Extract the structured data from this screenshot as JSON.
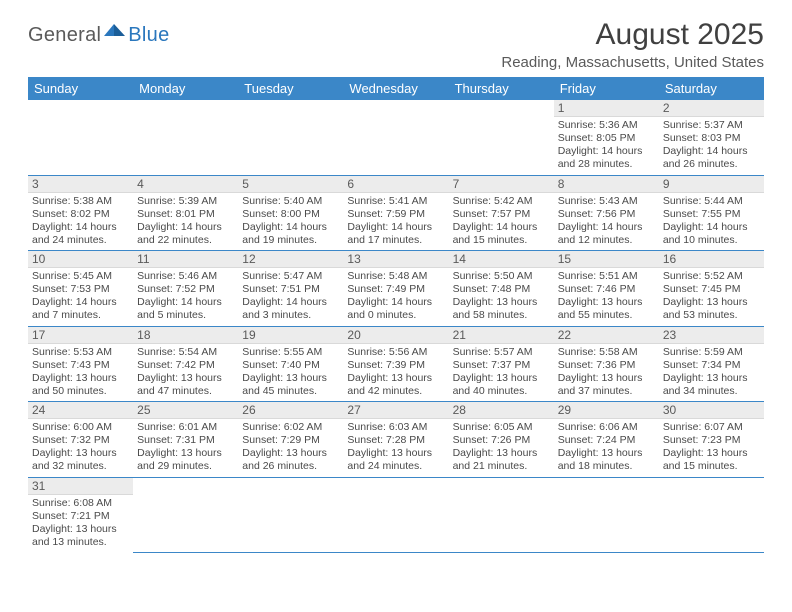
{
  "brand": {
    "part1": "General",
    "part2": "Blue",
    "mark_color": "#2a77bd"
  },
  "title": "August 2025",
  "location": "Reading, Massachusetts, United States",
  "header_bg": "#3b87c8",
  "weekdays": [
    "Sunday",
    "Monday",
    "Tuesday",
    "Wednesday",
    "Thursday",
    "Friday",
    "Saturday"
  ],
  "weeks": [
    [
      null,
      null,
      null,
      null,
      null,
      {
        "n": "1",
        "sr": "5:36 AM",
        "ss": "8:05 PM",
        "dl": "14 hours and 28 minutes."
      },
      {
        "n": "2",
        "sr": "5:37 AM",
        "ss": "8:03 PM",
        "dl": "14 hours and 26 minutes."
      }
    ],
    [
      {
        "n": "3",
        "sr": "5:38 AM",
        "ss": "8:02 PM",
        "dl": "14 hours and 24 minutes."
      },
      {
        "n": "4",
        "sr": "5:39 AM",
        "ss": "8:01 PM",
        "dl": "14 hours and 22 minutes."
      },
      {
        "n": "5",
        "sr": "5:40 AM",
        "ss": "8:00 PM",
        "dl": "14 hours and 19 minutes."
      },
      {
        "n": "6",
        "sr": "5:41 AM",
        "ss": "7:59 PM",
        "dl": "14 hours and 17 minutes."
      },
      {
        "n": "7",
        "sr": "5:42 AM",
        "ss": "7:57 PM",
        "dl": "14 hours and 15 minutes."
      },
      {
        "n": "8",
        "sr": "5:43 AM",
        "ss": "7:56 PM",
        "dl": "14 hours and 12 minutes."
      },
      {
        "n": "9",
        "sr": "5:44 AM",
        "ss": "7:55 PM",
        "dl": "14 hours and 10 minutes."
      }
    ],
    [
      {
        "n": "10",
        "sr": "5:45 AM",
        "ss": "7:53 PM",
        "dl": "14 hours and 7 minutes."
      },
      {
        "n": "11",
        "sr": "5:46 AM",
        "ss": "7:52 PM",
        "dl": "14 hours and 5 minutes."
      },
      {
        "n": "12",
        "sr": "5:47 AM",
        "ss": "7:51 PM",
        "dl": "14 hours and 3 minutes."
      },
      {
        "n": "13",
        "sr": "5:48 AM",
        "ss": "7:49 PM",
        "dl": "14 hours and 0 minutes."
      },
      {
        "n": "14",
        "sr": "5:50 AM",
        "ss": "7:48 PM",
        "dl": "13 hours and 58 minutes."
      },
      {
        "n": "15",
        "sr": "5:51 AM",
        "ss": "7:46 PM",
        "dl": "13 hours and 55 minutes."
      },
      {
        "n": "16",
        "sr": "5:52 AM",
        "ss": "7:45 PM",
        "dl": "13 hours and 53 minutes."
      }
    ],
    [
      {
        "n": "17",
        "sr": "5:53 AM",
        "ss": "7:43 PM",
        "dl": "13 hours and 50 minutes."
      },
      {
        "n": "18",
        "sr": "5:54 AM",
        "ss": "7:42 PM",
        "dl": "13 hours and 47 minutes."
      },
      {
        "n": "19",
        "sr": "5:55 AM",
        "ss": "7:40 PM",
        "dl": "13 hours and 45 minutes."
      },
      {
        "n": "20",
        "sr": "5:56 AM",
        "ss": "7:39 PM",
        "dl": "13 hours and 42 minutes."
      },
      {
        "n": "21",
        "sr": "5:57 AM",
        "ss": "7:37 PM",
        "dl": "13 hours and 40 minutes."
      },
      {
        "n": "22",
        "sr": "5:58 AM",
        "ss": "7:36 PM",
        "dl": "13 hours and 37 minutes."
      },
      {
        "n": "23",
        "sr": "5:59 AM",
        "ss": "7:34 PM",
        "dl": "13 hours and 34 minutes."
      }
    ],
    [
      {
        "n": "24",
        "sr": "6:00 AM",
        "ss": "7:32 PM",
        "dl": "13 hours and 32 minutes."
      },
      {
        "n": "25",
        "sr": "6:01 AM",
        "ss": "7:31 PM",
        "dl": "13 hours and 29 minutes."
      },
      {
        "n": "26",
        "sr": "6:02 AM",
        "ss": "7:29 PM",
        "dl": "13 hours and 26 minutes."
      },
      {
        "n": "27",
        "sr": "6:03 AM",
        "ss": "7:28 PM",
        "dl": "13 hours and 24 minutes."
      },
      {
        "n": "28",
        "sr": "6:05 AM",
        "ss": "7:26 PM",
        "dl": "13 hours and 21 minutes."
      },
      {
        "n": "29",
        "sr": "6:06 AM",
        "ss": "7:24 PM",
        "dl": "13 hours and 18 minutes."
      },
      {
        "n": "30",
        "sr": "6:07 AM",
        "ss": "7:23 PM",
        "dl": "13 hours and 15 minutes."
      }
    ],
    [
      {
        "n": "31",
        "sr": "6:08 AM",
        "ss": "7:21 PM",
        "dl": "13 hours and 13 minutes."
      },
      null,
      null,
      null,
      null,
      null,
      null
    ]
  ],
  "labels": {
    "sunrise": "Sunrise:",
    "sunset": "Sunset:",
    "daylight": "Daylight:"
  }
}
